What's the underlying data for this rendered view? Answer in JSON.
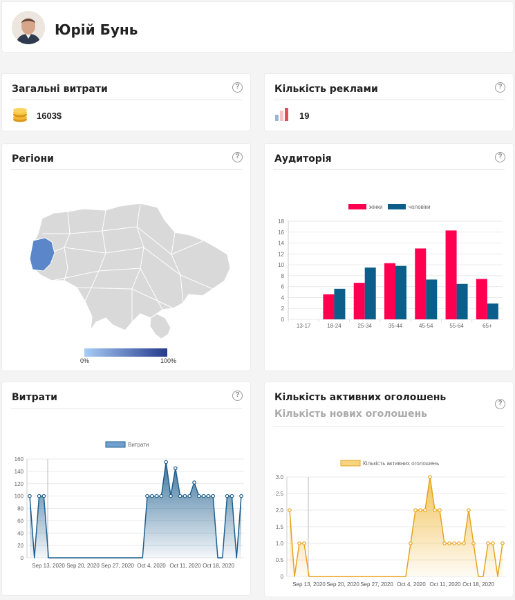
{
  "profile": {
    "name": "Юрій Бунь"
  },
  "spend_total": {
    "title": "Загальні витрати",
    "value": "1603$",
    "icon": "coins-icon"
  },
  "ads_count": {
    "title": "Кількість реклами",
    "value": "19",
    "icon": "ads-chart-icon"
  },
  "regions": {
    "title": "Регіони",
    "scale_min": "0%",
    "scale_max": "100%",
    "colors": {
      "base": "#d9d9d9",
      "highlight": "#5b86c9"
    }
  },
  "audience": {
    "title": "Аудиторія"
  },
  "spend_chart": {
    "title": "Витрати"
  },
  "active_ads": {
    "title": "Кількість активних оголошень",
    "subtitle": "Кількість нових оголошень"
  },
  "help_symbol": "?",
  "chart_data": [
    {
      "type": "bar",
      "categories": [
        "13-17",
        "18-24",
        "25-34",
        "35-44",
        "45-54",
        "55-64",
        "65+"
      ],
      "series": [
        {
          "name": "жінки",
          "values": [
            0,
            4.6,
            6.7,
            10.3,
            13.0,
            16.3,
            7.4
          ],
          "color": "#ff0051"
        },
        {
          "name": "чоловіки",
          "values": [
            0,
            5.6,
            9.5,
            9.8,
            7.3,
            6.5,
            2.9
          ],
          "color": "#0b5e8a"
        }
      ],
      "ylim": [
        0,
        18
      ],
      "yticks": [
        0,
        2,
        4,
        6,
        8,
        10,
        12,
        14,
        16,
        18
      ],
      "legend": "top",
      "grid": true
    },
    {
      "type": "area",
      "series": [
        {
          "name": "Витрати",
          "values": [
            100,
            0,
            100,
            100,
            0,
            0,
            0,
            0,
            0,
            0,
            0,
            0,
            0,
            0,
            0,
            0,
            0,
            0,
            0,
            0,
            0,
            0,
            0,
            0,
            0,
            100,
            100,
            100,
            100,
            155,
            100,
            145,
            100,
            100,
            100,
            122,
            100,
            100,
            100,
            100,
            0,
            0,
            100,
            100,
            0,
            100
          ],
          "color": "#1d5e8e"
        }
      ],
      "xticks": [
        "Sep 13, 2020",
        "Sep 20, 2020",
        "Sep 27, 2020",
        "Oct 4, 2020",
        "Oct 11, 2020",
        "Oct 18, 2020"
      ],
      "ylim": [
        0,
        160
      ],
      "yticks": [
        0,
        20,
        40,
        60,
        80,
        100,
        120,
        140,
        160
      ],
      "legend": "top",
      "grid": true
    },
    {
      "type": "area",
      "series": [
        {
          "name": "Кількість активних оголошень",
          "values": [
            2,
            0,
            1,
            1,
            0,
            0,
            0,
            0,
            0,
            0,
            0,
            0,
            0,
            0,
            0,
            0,
            0,
            0,
            0,
            0,
            0,
            0,
            0,
            0,
            0,
            1,
            2,
            2,
            2,
            3,
            2,
            2,
            1,
            1,
            1,
            1,
            1,
            2,
            1,
            0,
            0,
            1,
            1,
            0,
            1
          ],
          "color": "#e8a21d"
        }
      ],
      "xticks": [
        "Sep 13, 2020",
        "Sep 20, 2020",
        "Sep 27, 2020",
        "Oct 4, 2020",
        "Oct 11, 2020",
        "Oct 18, 2020"
      ],
      "ylim": [
        0,
        3
      ],
      "yticks": [
        "0",
        "0.5",
        "1.0",
        "1.5",
        "2.0",
        "2.5",
        "3.0"
      ],
      "legend": "top",
      "grid": true
    }
  ]
}
